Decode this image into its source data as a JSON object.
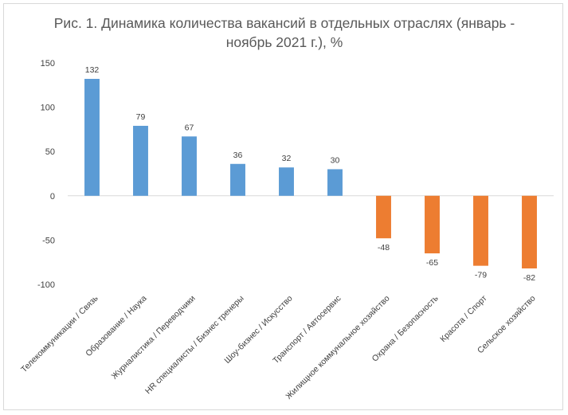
{
  "chart_data": {
    "type": "bar",
    "title_lines": [
      "Рис. 1. Динамика количества вакансий в отдельных отраслях (январь -",
      "ноябрь 2021 г.), %"
    ],
    "categories": [
      "Телекоммуникации / Связь",
      "Образование / Наука",
      "Журналистика / Переводчики",
      "HR специалисты / Бизнес тренеры",
      "Шоу-бизнес / Искусство",
      "Транспорт / Автосервис",
      "Жилищное коммунальное хозяйство",
      "Охрана / Безопасность",
      "Красота / Спорт",
      "Сельское хозяйство"
    ],
    "values": [
      132,
      79,
      67,
      36,
      32,
      30,
      -48,
      -65,
      -79,
      -82
    ],
    "ylim": [
      -100,
      150
    ],
    "yticks": [
      -100,
      -50,
      0,
      50,
      100,
      150
    ],
    "grid": false,
    "legend": "none",
    "colors": {
      "positive": "#5b9bd5",
      "negative": "#ed7d31",
      "axis": "#d9d9d9",
      "text": "#404040"
    }
  }
}
